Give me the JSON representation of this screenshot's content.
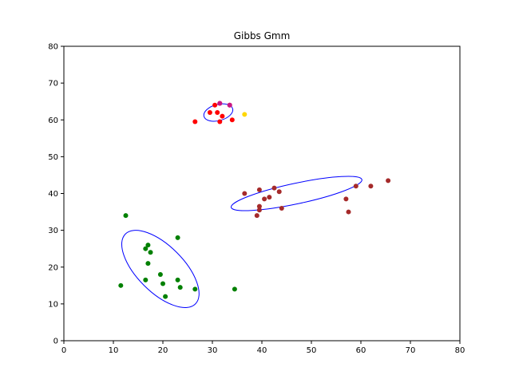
{
  "chart_data": {
    "type": "scatter",
    "title": "Gibbs Gmm",
    "xlabel": "",
    "ylabel": "",
    "xlim": [
      0,
      80
    ],
    "ylim": [
      0,
      80
    ],
    "xticks": [
      0,
      10,
      20,
      30,
      40,
      50,
      60,
      70,
      80
    ],
    "yticks": [
      0,
      10,
      20,
      30,
      40,
      50,
      60,
      70,
      80
    ],
    "grid": false,
    "series": [
      {
        "color": "#ff0000",
        "points": [
          [
            26.5,
            59.5
          ],
          [
            29.5,
            62
          ],
          [
            30.5,
            64
          ],
          [
            31,
            62
          ],
          [
            31.5,
            64.5
          ],
          [
            31.5,
            59.5
          ],
          [
            32,
            61
          ],
          [
            33.5,
            64
          ],
          [
            34,
            60
          ]
        ]
      },
      {
        "color": "#c71585",
        "points": [
          [
            31.5,
            64.5
          ],
          [
            33.5,
            64
          ]
        ]
      },
      {
        "color": "#ffd700",
        "points": [
          [
            36.5,
            61.5
          ]
        ]
      },
      {
        "color": "#a52a2a",
        "points": [
          [
            36.5,
            40
          ],
          [
            39,
            34
          ],
          [
            39.5,
            41
          ],
          [
            39.5,
            35.5
          ],
          [
            39.5,
            36.5
          ],
          [
            40.5,
            38.5
          ],
          [
            41.5,
            39
          ],
          [
            42.5,
            41.5
          ],
          [
            43.5,
            40.5
          ],
          [
            44,
            36
          ],
          [
            57,
            38.5
          ],
          [
            57.5,
            35
          ],
          [
            59,
            42
          ],
          [
            62,
            42
          ],
          [
            65.5,
            43.5
          ]
        ]
      },
      {
        "color": "#008000",
        "points": [
          [
            11.5,
            15
          ],
          [
            12.5,
            34
          ],
          [
            16.5,
            16.5
          ],
          [
            16.5,
            25
          ],
          [
            17,
            26
          ],
          [
            17,
            21
          ],
          [
            17.5,
            24
          ],
          [
            19.5,
            18
          ],
          [
            20,
            15.5
          ],
          [
            20.5,
            12
          ],
          [
            23,
            16.5
          ],
          [
            23,
            28
          ],
          [
            23.5,
            14.5
          ],
          [
            26.5,
            14
          ],
          [
            34.5,
            14
          ]
        ]
      }
    ],
    "ellipses": [
      {
        "cx": 31.2,
        "cy": 62.0,
        "rx": 3.0,
        "ry": 2.2,
        "angle_deg": 15,
        "color": "#0000ff"
      },
      {
        "cx": 47.0,
        "cy": 40.0,
        "rx": 13.5,
        "ry": 2.8,
        "angle_deg": 12,
        "color": "#0000ff"
      },
      {
        "cx": 19.5,
        "cy": 19.5,
        "rx": 10.0,
        "ry": 6.3,
        "angle_deg": -45,
        "color": "#0000ff"
      }
    ]
  }
}
